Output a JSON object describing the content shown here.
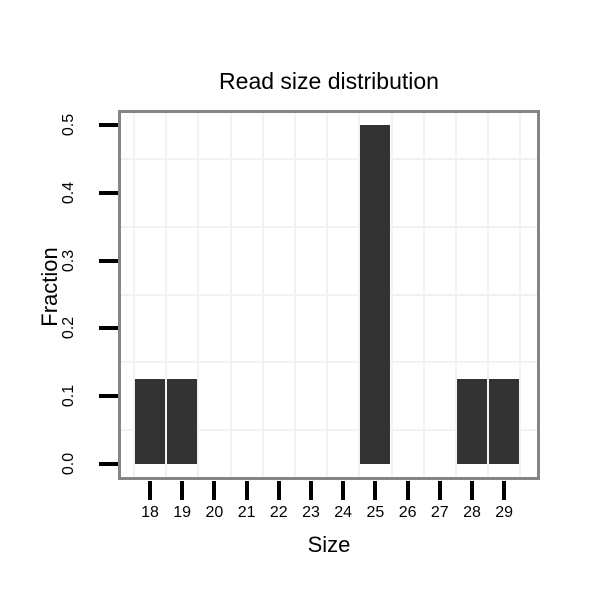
{
  "chart_data": {
    "type": "bar",
    "title": "Read size distribution",
    "xlabel": "Size",
    "ylabel": "Fraction",
    "categories": [
      18,
      19,
      20,
      21,
      22,
      23,
      24,
      25,
      26,
      27,
      28,
      29
    ],
    "values": [
      0.125,
      0.125,
      0,
      0,
      0,
      0,
      0,
      0.5,
      0,
      0,
      0.125,
      0.125
    ],
    "y_ticks": [
      "0.0",
      "0.1",
      "0.2",
      "0.3",
      "0.4",
      "0.5"
    ],
    "ylim": [
      0,
      0.52
    ],
    "grid": "minor-only",
    "legend": "none",
    "bar_color": "#333333"
  },
  "colors": {
    "background": "#ffffff",
    "panel_border": "#858585",
    "grid_line": "#f2f2f2",
    "axis_tick": "#000000",
    "text": "#000000"
  }
}
